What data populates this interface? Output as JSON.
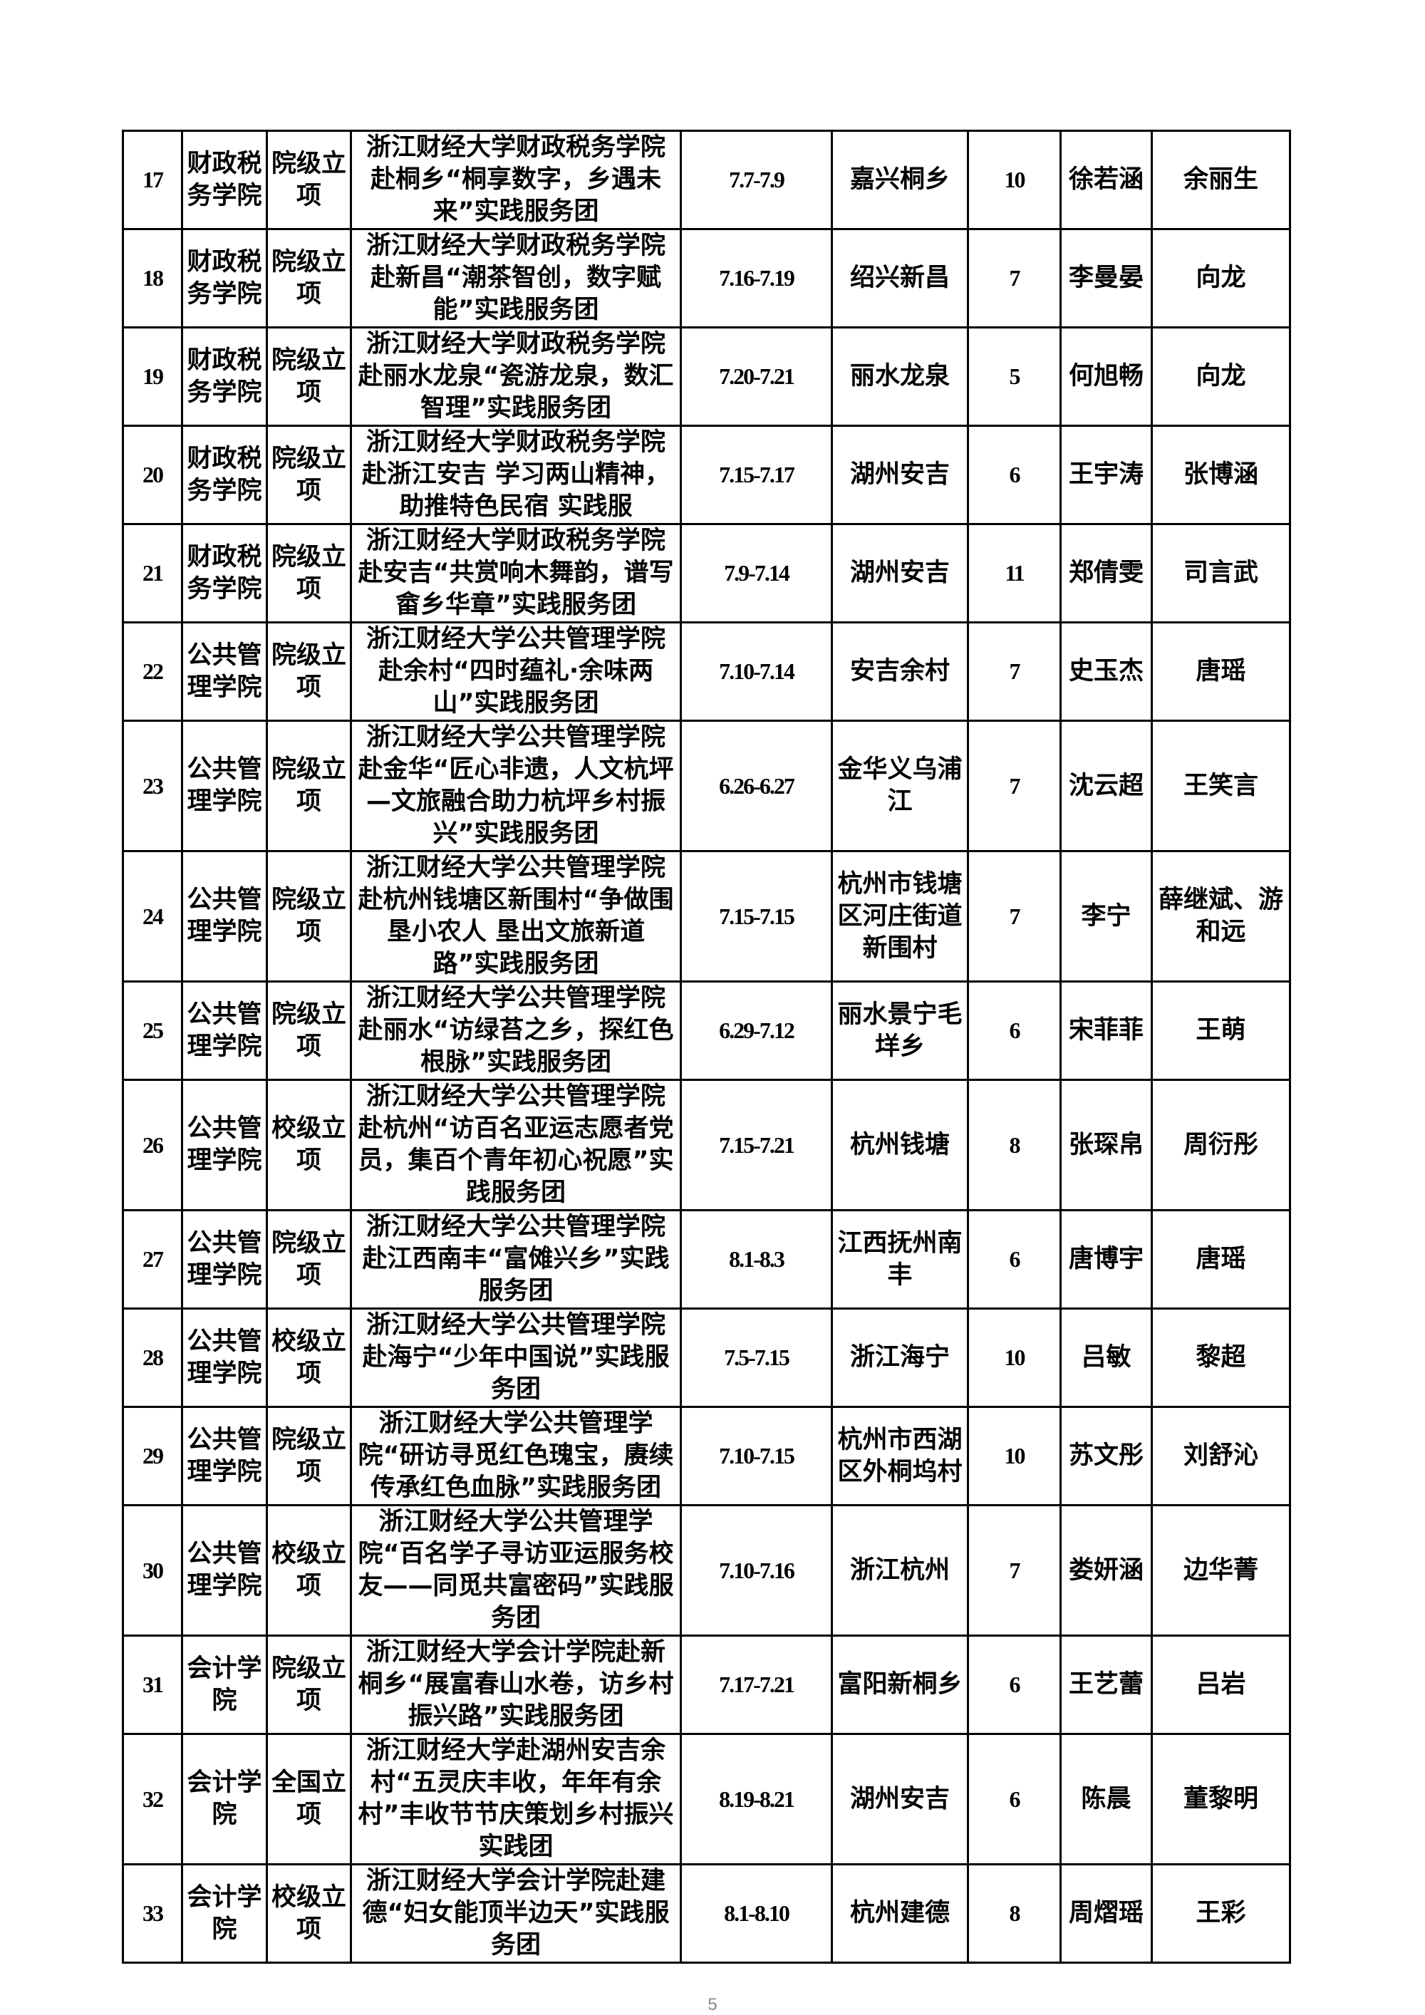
{
  "rows": [
    {
      "no": "17",
      "college": "财政税务学院",
      "level": "院级立项",
      "project": "浙江财经大学财政税务学院赴桐乡“桐享数字，乡遇未来”实践服务团",
      "dates": "7.7-7.9",
      "location": "嘉兴桐乡",
      "members": "10",
      "leader": "徐若涵",
      "advisor": "余丽生"
    },
    {
      "no": "18",
      "college": "财政税务学院",
      "level": "院级立项",
      "project": "浙江财经大学财政税务学院赴新昌“潮茶智创，数字赋能”实践服务团",
      "dates": "7.16-7.19",
      "location": "绍兴新昌",
      "members": "7",
      "leader": "李曼晏",
      "advisor": "向龙"
    },
    {
      "no": "19",
      "college": "财政税务学院",
      "level": "院级立项",
      "project": "浙江财经大学财政税务学院赴丽水龙泉“瓷游龙泉，数汇智理”实践服务团",
      "dates": "7.20-7.21",
      "location": "丽水龙泉",
      "members": "5",
      "leader": "何旭畅",
      "advisor": "向龙"
    },
    {
      "no": "20",
      "college": "财政税务学院",
      "level": "院级立项",
      "project": "浙江财经大学财政税务学院赴浙江安吉 学习两山精神，助推特色民宿 实践服",
      "dates": "7.15-7.17",
      "location": "湖州安吉",
      "members": "6",
      "leader": "王宇涛",
      "advisor": "张博涵"
    },
    {
      "no": "21",
      "college": "财政税务学院",
      "level": "院级立项",
      "project": "浙江财经大学财政税务学院赴安吉“共赏响木舞韵，谱写畲乡华章”实践服务团",
      "dates": "7.9-7.14",
      "location": "湖州安吉",
      "members": "11",
      "leader": "郑倩雯",
      "advisor": "司言武"
    },
    {
      "no": "22",
      "college": "公共管理学院",
      "level": "院级立项",
      "project": "浙江财经大学公共管理学院赴余村“四时蕴礼·余味两山”实践服务团",
      "dates": "7.10-7.14",
      "location": "安吉余村",
      "members": "7",
      "leader": "史玉杰",
      "advisor": "唐瑶"
    },
    {
      "no": "23",
      "college": "公共管理学院",
      "level": "院级立项",
      "project": "浙江财经大学公共管理学院赴金华“匠心非遗，人文杭坪—文旅融合助力杭坪乡村振兴”实践服务团",
      "dates": "6.26-6.27",
      "location": "金华义乌浦江",
      "members": "7",
      "leader": "沈云超",
      "advisor": "王笑言"
    },
    {
      "no": "24",
      "college": "公共管理学院",
      "level": "院级立项",
      "project": "浙江财经大学公共管理学院赴杭州钱塘区新围村“争做围垦小农人 垦出文旅新道路”实践服务团",
      "dates": "7.15-7.15",
      "location": "杭州市钱塘区河庄街道新围村",
      "members": "7",
      "leader": "李宁",
      "advisor": "薛继斌、游和远"
    },
    {
      "no": "25",
      "college": "公共管理学院",
      "level": "院级立项",
      "project": "浙江财经大学公共管理学院赴丽水“访绿苔之乡，探红色根脉”实践服务团",
      "dates": "6.29-7.12",
      "location": "丽水景宁毛垟乡",
      "members": "6",
      "leader": "宋菲菲",
      "advisor": "王萌"
    },
    {
      "no": "26",
      "college": "公共管理学院",
      "level": "校级立项",
      "project": "浙江财经大学公共管理学院赴杭州“访百名亚运志愿者党员，集百个青年初心祝愿”实践服务团",
      "dates": "7.15-7.21",
      "location": "杭州钱塘",
      "members": "8",
      "leader": "张琛帛",
      "advisor": "周衍彤"
    },
    {
      "no": "27",
      "college": "公共管理学院",
      "level": "院级立项",
      "project": "浙江财经大学公共管理学院赴江西南丰“富傩兴乡”实践服务团",
      "dates": "8.1-8.3",
      "location": "江西抚州南丰",
      "members": "6",
      "leader": "唐博宇",
      "advisor": "唐瑶"
    },
    {
      "no": "28",
      "college": "公共管理学院",
      "level": "校级立项",
      "project": "浙江财经大学公共管理学院赴海宁“少年中国说”实践服务团",
      "dates": "7.5-7.15",
      "location": "浙江海宁",
      "members": "10",
      "leader": "吕敏",
      "advisor": "黎超"
    },
    {
      "no": "29",
      "college": "公共管理学院",
      "level": "院级立项",
      "project": "浙江财经大学公共管理学院“研访寻觅红色瑰宝，赓续传承红色血脉”实践服务团",
      "dates": "7.10-7.15",
      "location": "杭州市西湖区外桐坞村",
      "members": "10",
      "leader": "苏文彤",
      "advisor": "刘舒沁"
    },
    {
      "no": "30",
      "college": "公共管理学院",
      "level": "校级立项",
      "project": "浙江财经大学公共管理学院“百名学子寻访亚运服务校友——同觅共富密码”实践服务团",
      "dates": "7.10-7.16",
      "location": "浙江杭州",
      "members": "7",
      "leader": "娄妍涵",
      "advisor": "边华菁"
    },
    {
      "no": "31",
      "college": "会计学院",
      "level": "院级立项",
      "project": "浙江财经大学会计学院赴新桐乡“展富春山水卷，访乡村振兴路”实践服务团",
      "dates": "7.17-7.21",
      "location": "富阳新桐乡",
      "members": "6",
      "leader": "王艺蕾",
      "advisor": "吕岩"
    },
    {
      "no": "32",
      "college": "会计学院",
      "level": "全国立项",
      "project": "浙江财经大学赴湖州安吉余村“五灵庆丰收，年年有余村”丰收节节庆策划乡村振兴实践团",
      "dates": "8.19-8.21",
      "location": "湖州安吉",
      "members": "6",
      "leader": "陈晨",
      "advisor": "董黎明"
    },
    {
      "no": "33",
      "college": "会计学院",
      "level": "校级立项",
      "project": "浙江财经大学会计学院赴建德“妇女能顶半边天”实践服务团",
      "dates": "8.1-8.10",
      "location": "杭州建德",
      "members": "8",
      "leader": "周熠瑶",
      "advisor": "王彩"
    }
  ],
  "page_number": "5"
}
